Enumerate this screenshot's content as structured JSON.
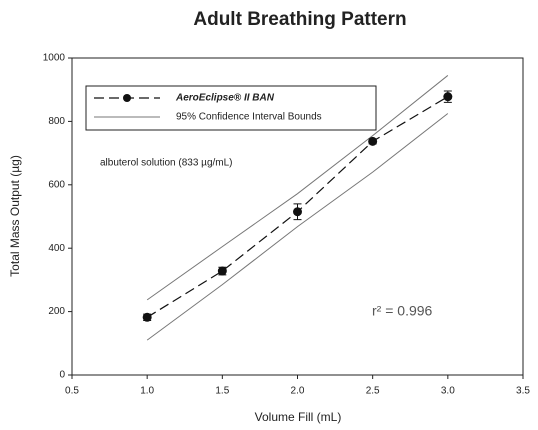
{
  "chart_data": {
    "type": "line",
    "title": "Adult Breathing Pattern",
    "xlabel": "Volume Fill (mL)",
    "ylabel": "Total Mass Output (µg)",
    "x": [
      1.0,
      1.5,
      2.0,
      2.5,
      3.0
    ],
    "series": [
      {
        "name": "AeroEclipse® II BAN",
        "color": "#111111",
        "values": [
          182,
          328,
          515,
          737,
          878
        ],
        "errors": [
          10,
          12,
          25,
          8,
          18
        ]
      }
    ],
    "confidence_bounds": {
      "name": "95% Confidence Interval Bounds",
      "color": "#777777",
      "upper": [
        237,
        405,
        572,
        755,
        945
      ],
      "lower": [
        110,
        285,
        468,
        640,
        825
      ]
    },
    "annotations": [
      "albuterol solution (833 µg/mL)",
      "r² = 0.996"
    ],
    "xlim": [
      0.5,
      3.5
    ],
    "xticks": [
      {
        "value": 0.5,
        "label": "0.5"
      },
      {
        "value": 1,
        "label": "1.0"
      },
      {
        "value": 1.5,
        "label": "1.5"
      },
      {
        "value": 2,
        "label": "2.0"
      },
      {
        "value": 2.5,
        "label": "2.5"
      },
      {
        "value": 3,
        "label": "3.0"
      },
      {
        "value": 3.5,
        "label": "3.5"
      }
    ],
    "ylim": [
      0,
      1000
    ],
    "yticks": [
      0,
      200,
      400,
      600,
      800,
      1000
    ]
  }
}
